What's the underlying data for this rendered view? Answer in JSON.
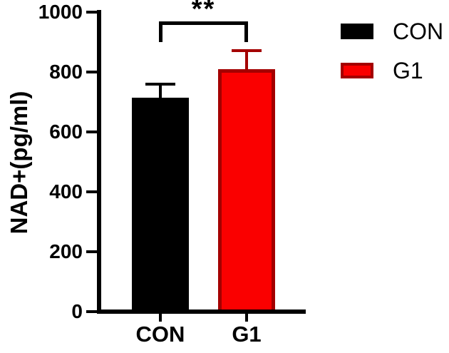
{
  "chart_data": {
    "type": "bar",
    "title": "",
    "xlabel": "",
    "ylabel": "NAD+(pg/ml)",
    "ylim": [
      0,
      1000
    ],
    "yticks": [
      0,
      200,
      400,
      600,
      800,
      1000
    ],
    "grid": false,
    "categories": [
      "CON",
      "G1"
    ],
    "series": [
      {
        "name": "CON",
        "value": 715,
        "error": 45,
        "fill": "#000000",
        "edge": "#000000"
      },
      {
        "name": "G1",
        "value": 810,
        "error": 62,
        "fill": "#FA0000",
        "edge": "#A40000"
      }
    ],
    "error_bar_style": "upper SEM, cap",
    "significance": {
      "label": "**",
      "between": [
        "CON",
        "G1"
      ]
    },
    "legend_position": "upper right",
    "legend": [
      {
        "label": "CON",
        "fill": "#000000",
        "edge": "#000000"
      },
      {
        "label": "G1",
        "fill": "#FA0000",
        "edge": "#A40000"
      }
    ],
    "colors": {
      "background": "#FFFFFF",
      "axis": "#000000"
    }
  }
}
